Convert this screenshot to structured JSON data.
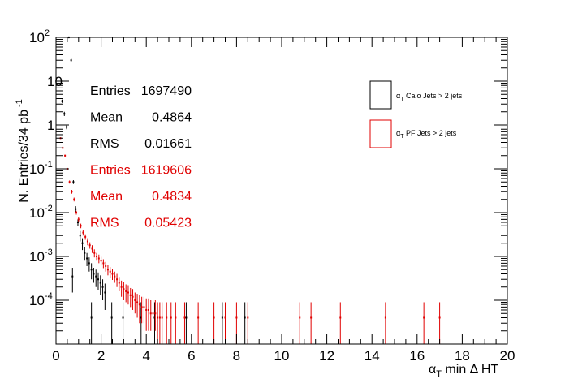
{
  "chart_data": {
    "type": "scatter",
    "xlabel_main": "α",
    "xlabel_sub": "T",
    "xlabel_rest": " min Δ HT",
    "ylabel_main": "N. Entries/34 pb",
    "ylabel_exp": "-1",
    "xlim": [
      0,
      20
    ],
    "ylim": [
      1e-05,
      100
    ],
    "yscale": "log",
    "x_ticks": [
      0,
      2,
      4,
      6,
      8,
      10,
      12,
      14,
      16,
      18,
      20
    ],
    "x_tick_labels": [
      "0",
      "2",
      "4",
      "6",
      "8",
      "10",
      "12",
      "14",
      "16",
      "18",
      "20"
    ],
    "y_ticks": [
      {
        "value": 0.0001,
        "base": "10",
        "exp": "-4"
      },
      {
        "value": 0.001,
        "base": "10",
        "exp": "-3"
      },
      {
        "value": 0.01,
        "base": "10",
        "exp": "-2"
      },
      {
        "value": 0.1,
        "base": "10",
        "exp": "-1"
      },
      {
        "value": 1,
        "base": "1",
        "exp": ""
      },
      {
        "value": 10,
        "base": "10",
        "exp": ""
      },
      {
        "value": 100,
        "base": "10",
        "exp": "2"
      }
    ],
    "legend_position": "top-right",
    "stats": [
      {
        "label": "Entries",
        "value": "1697490",
        "color": "#000000"
      },
      {
        "label": "Mean",
        "value": "0.4864",
        "color": "#000000"
      },
      {
        "label": "RMS",
        "value": "0.01661",
        "color": "#000000"
      },
      {
        "label": "Entries",
        "value": "1619606",
        "color": "#e00000"
      },
      {
        "label": "Mean",
        "value": "0.4834",
        "color": "#e00000"
      },
      {
        "label": "RMS",
        "value": "0.05423",
        "color": "#e00000"
      }
    ],
    "series": [
      {
        "name_main": "α",
        "name_sub": "T",
        "name_rest": " Calo Jets > 2 jets",
        "color": "#000000",
        "x": [
          0.27,
          0.37,
          0.47,
          0.57,
          0.67,
          0.77,
          0.87,
          0.97,
          1.07,
          1.17,
          1.27,
          1.37,
          1.47,
          1.57,
          1.67,
          1.77,
          1.87,
          1.97,
          2.07,
          2.17,
          0.73,
          1.57,
          2.47,
          2.97,
          3.77,
          4.37,
          5.77,
          7.37,
          8.37
        ],
        "y": [
          3.5,
          1.8,
          0.9,
          100,
          30,
          0.05,
          0.012,
          0.006,
          0.003,
          0.002,
          0.0012,
          0.0009,
          0.0007,
          0.0005,
          0.0004,
          0.00035,
          0.0003,
          0.00025,
          0.0002,
          0.00015,
          0.00035,
          4e-05,
          4e-05,
          4e-05,
          4e-05,
          4e-05,
          4e-05,
          4e-05,
          4e-05
        ],
        "err_lo": [
          0.3,
          0.2,
          0.1,
          5,
          3,
          0.005,
          0.002,
          0.001,
          0.0008,
          0.0006,
          0.0004,
          0.0003,
          0.00025,
          0.0002,
          0.00015,
          0.00015,
          0.00013,
          0.00012,
          0.0001,
          9e-05,
          0.0002,
          3e-05,
          3e-05,
          3e-05,
          3e-05,
          3e-05,
          3e-05,
          3e-05,
          3e-05
        ],
        "err_hi": [
          0.3,
          0.2,
          0.1,
          5,
          3,
          0.005,
          0.002,
          0.001,
          0.0008,
          0.0006,
          0.0004,
          0.0003,
          0.00025,
          0.0002,
          0.00015,
          0.00015,
          0.00013,
          0.00012,
          0.0001,
          9e-05,
          0.0002,
          5e-05,
          5e-05,
          5e-05,
          5e-05,
          5e-05,
          5e-05,
          5e-05,
          5e-05
        ]
      },
      {
        "name_main": "α",
        "name_sub": "T",
        "name_rest": " PF Jets > 2 jets",
        "color": "#e00000",
        "x": [
          0.2,
          0.3,
          0.4,
          0.5,
          0.6,
          0.7,
          0.8,
          0.9,
          1.0,
          1.1,
          1.2,
          1.3,
          1.4,
          1.5,
          1.6,
          1.7,
          1.8,
          1.9,
          2.0,
          2.1,
          2.2,
          2.3,
          2.4,
          2.5,
          2.6,
          2.7,
          2.8,
          2.9,
          3.0,
          3.1,
          3.2,
          3.3,
          3.4,
          3.5,
          3.6,
          3.7,
          3.8,
          3.9,
          4.0,
          4.1,
          4.2,
          4.3,
          4.4,
          4.5,
          4.6,
          4.7,
          4.9,
          5.1,
          5.3,
          5.7,
          6.3,
          7.0,
          7.5,
          8.0,
          8.5,
          10.8,
          11.3,
          12.6,
          14.6,
          16.3,
          17.0
        ],
        "y": [
          0.5,
          0.3,
          0.2,
          0.1,
          0.05,
          0.03,
          0.02,
          0.01,
          0.007,
          0.005,
          0.0035,
          0.0028,
          0.0022,
          0.0018,
          0.0015,
          0.0012,
          0.001,
          0.0009,
          0.0008,
          0.0007,
          0.0006,
          0.0005,
          0.00045,
          0.0004,
          0.00035,
          0.0003,
          0.00025,
          0.0002,
          0.00018,
          0.00016,
          0.00015,
          0.00013,
          0.00012,
          0.0001,
          9e-05,
          8e-05,
          7e-05,
          7e-05,
          6e-05,
          6e-05,
          5e-05,
          5e-05,
          5e-05,
          4e-05,
          4e-05,
          4e-05,
          4e-05,
          4e-05,
          4e-05,
          4e-05,
          4e-05,
          4e-05,
          4e-05,
          4e-05,
          4e-05,
          4e-05,
          4e-05,
          4e-05,
          4e-05,
          4e-05,
          4e-05
        ],
        "err_lo": [
          0.02,
          0.02,
          0.01,
          0.005,
          0.004,
          0.003,
          0.002,
          0.001,
          0.0008,
          0.0006,
          0.0005,
          0.0004,
          0.0004,
          0.0003,
          0.0003,
          0.00025,
          0.0002,
          0.0002,
          0.00018,
          0.00016,
          0.00015,
          0.00013,
          0.00012,
          0.00011,
          0.0001,
          0.0001,
          9e-05,
          8e-05,
          8e-05,
          7e-05,
          7e-05,
          6e-05,
          6e-05,
          5e-05,
          5e-05,
          5e-05,
          4e-05,
          4e-05,
          4e-05,
          4e-05,
          3e-05,
          3e-05,
          3e-05,
          3e-05,
          3e-05,
          3e-05,
          3e-05,
          3e-05,
          3e-05,
          3e-05,
          3e-05,
          3e-05,
          3e-05,
          3e-05,
          3e-05,
          3e-05,
          3e-05,
          3e-05,
          3e-05,
          3e-05,
          3e-05
        ],
        "err_hi": [
          0.02,
          0.02,
          0.01,
          0.005,
          0.004,
          0.003,
          0.002,
          0.001,
          0.0008,
          0.0006,
          0.0005,
          0.0004,
          0.0004,
          0.0003,
          0.0003,
          0.00025,
          0.0002,
          0.0002,
          0.00018,
          0.00016,
          0.00015,
          0.00013,
          0.00012,
          0.00011,
          0.0001,
          0.0001,
          9e-05,
          8e-05,
          8e-05,
          7e-05,
          7e-05,
          6e-05,
          6e-05,
          5e-05,
          5e-05,
          5e-05,
          5e-05,
          5e-05,
          5e-05,
          5e-05,
          5e-05,
          5e-05,
          5e-05,
          5e-05,
          5e-05,
          5e-05,
          5e-05,
          5e-05,
          5e-05,
          5e-05,
          5e-05,
          5e-05,
          5e-05,
          5e-05,
          5e-05,
          5e-05,
          5e-05,
          5e-05,
          5e-05,
          5e-05,
          5e-05
        ]
      }
    ]
  }
}
